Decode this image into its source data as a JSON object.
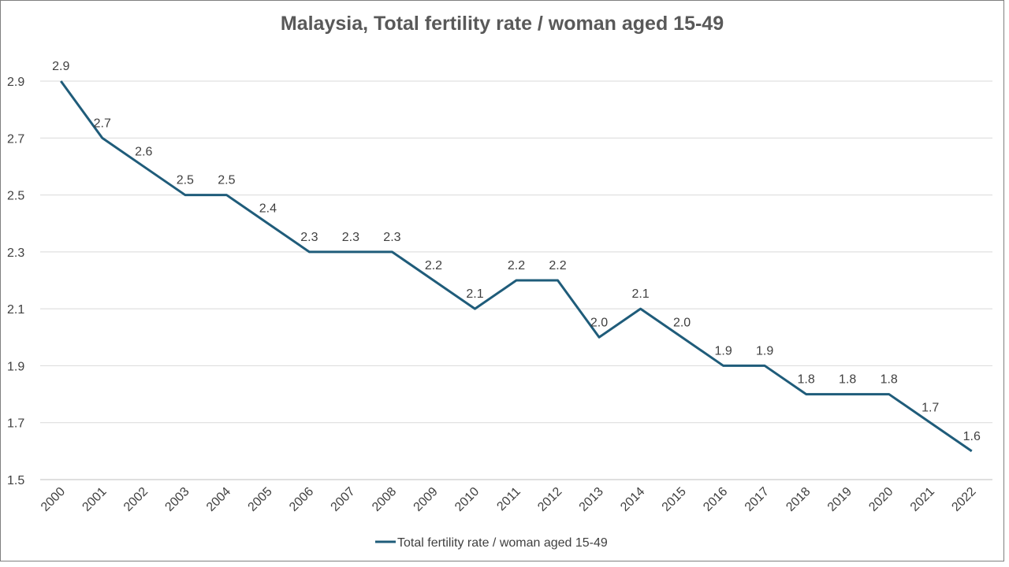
{
  "chart_data": {
    "type": "line",
    "title": "Malaysia, Total fertility rate / woman aged 15-49",
    "xlabel": "",
    "ylabel": "",
    "categories": [
      "2000",
      "2001",
      "2002",
      "2003",
      "2004",
      "2005",
      "2006",
      "2007",
      "2008",
      "2009",
      "2010",
      "2011",
      "2012",
      "2013",
      "2014",
      "2015",
      "2016",
      "2017",
      "2018",
      "2019",
      "2020",
      "2021",
      "2022"
    ],
    "series": [
      {
        "name": "Total fertility rate / woman aged 15-49",
        "values": [
          2.9,
          2.7,
          2.6,
          2.5,
          2.5,
          2.4,
          2.3,
          2.3,
          2.3,
          2.2,
          2.1,
          2.2,
          2.2,
          2.0,
          2.1,
          2.0,
          1.9,
          1.9,
          1.8,
          1.8,
          1.8,
          1.7,
          1.6
        ],
        "labels": [
          "2.9",
          "2.7",
          "2.6",
          "2.5",
          "2.5",
          "2.4",
          "2.3",
          "2.3",
          "2.3",
          "2.2",
          "2.1",
          "2.2",
          "2.2",
          "2.0",
          "2.1",
          "2.0",
          "1.9",
          "1.9",
          "1.8",
          "1.8",
          "1.8",
          "1.7",
          "1.6"
        ],
        "color": "#1f5c7a"
      }
    ],
    "yticks": [
      "1.5",
      "1.7",
      "1.9",
      "2.1",
      "2.3",
      "2.5",
      "2.7",
      "2.9"
    ],
    "ylim": [
      1.5,
      2.9
    ],
    "grid": true,
    "legend_position": "bottom"
  }
}
